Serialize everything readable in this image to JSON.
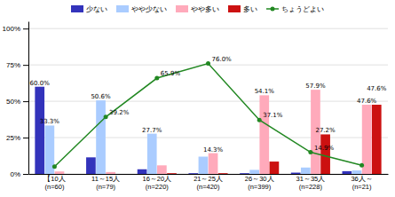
{
  "chart_data": {
    "type": "bar",
    "categories": [
      "【10人\n(n=60)",
      "11～15人\n(n=79)",
      "16～20人\n(n=220)",
      "21～25人\n(n=420)",
      "26～30人\n(n=399)",
      "31～35人\n(n=228)",
      "36人～\n(n=21)"
    ],
    "series": [
      {
        "name": "少ない",
        "color": "#3333bb",
        "values": [
          60.0,
          11.4,
          3.2,
          0.5,
          0.5,
          0.9,
          1.9
        ],
        "value_labels": [
          "60.0%",
          null,
          null,
          null,
          null,
          null,
          null
        ]
      },
      {
        "name": "やや少ない",
        "color": "#aaccff",
        "values": [
          33.3,
          50.6,
          27.7,
          11.9,
          2.8,
          4.4,
          2.4
        ],
        "value_labels": [
          "33.3%",
          "50.6%",
          "27.7%",
          null,
          null,
          null,
          null
        ]
      },
      {
        "name": "やや多い",
        "color": "#ffaabb",
        "values": [
          1.7,
          1.3,
          5.9,
          14.3,
          54.1,
          57.9,
          47.6
        ],
        "value_labels": [
          null,
          null,
          null,
          "14.3%",
          "54.1%",
          "57.9%",
          "47.6%"
        ]
      },
      {
        "name": "多い",
        "color": "#cc1111",
        "values": [
          0.0,
          0.0,
          0.5,
          0.5,
          8.5,
          27.2,
          47.6
        ],
        "value_labels": [
          null,
          null,
          null,
          null,
          null,
          "27.2%",
          "47.6%"
        ]
      },
      {
        "name": "ちょうどよい",
        "type": "line",
        "marker": "circle",
        "color": "#228822",
        "values": [
          5.0,
          39.2,
          65.9,
          76.0,
          37.1,
          14.9,
          6.0
        ],
        "value_labels": [
          null,
          "39.2%",
          "65.9%",
          "76.0%",
          "37.1%",
          "14.9%",
          null
        ]
      }
    ],
    "ylim": [
      0,
      105
    ],
    "yticks": [
      {
        "value": 0,
        "label": "0%"
      },
      {
        "value": 25,
        "label": "25%"
      },
      {
        "value": 50,
        "label": "50%"
      },
      {
        "value": 75,
        "label": "75%"
      },
      {
        "value": 100,
        "label": "100%"
      }
    ],
    "grid": true,
    "legend": "top",
    "data_labels": true
  }
}
